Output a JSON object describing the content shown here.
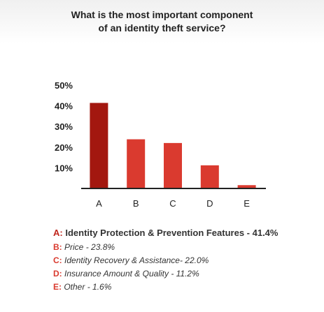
{
  "title": {
    "line1": "What is the most important component",
    "line2": "of an identity theft service?"
  },
  "chart_data": {
    "type": "bar",
    "categories": [
      "A",
      "B",
      "C",
      "D",
      "E"
    ],
    "values": [
      41.4,
      23.8,
      22.0,
      11.2,
      1.6
    ],
    "ylim": [
      0,
      50
    ],
    "yticks": [
      "50%",
      "40%",
      "30%",
      "20%",
      "10%"
    ],
    "grid": false,
    "colors": {
      "highlight": "#a3170f",
      "default": "#da3a2f",
      "axis": "#222222"
    }
  },
  "legend": [
    {
      "key": "A:",
      "text": "Identity Protection & Prevention Features - 41.4%"
    },
    {
      "key": "B:",
      "text": "Price - 23.8%"
    },
    {
      "key": "C:",
      "text": "Identity Recovery & Assistance- 22.0%"
    },
    {
      "key": "D:",
      "text": "Insurance Amount & Quality - 11.2%"
    },
    {
      "key": "E:",
      "text": "Other - 1.6%"
    }
  ]
}
